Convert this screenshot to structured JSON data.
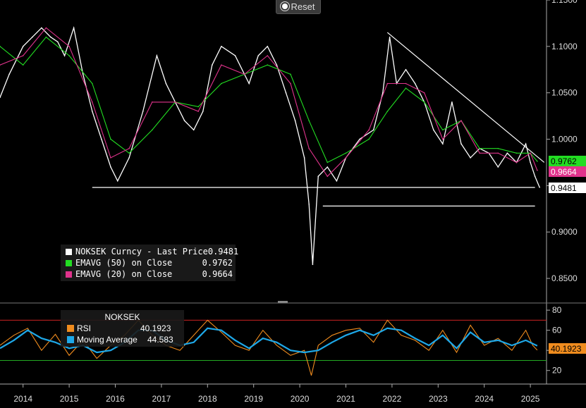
{
  "toolbar": {
    "reset_label": "Reset"
  },
  "legend": {
    "items": [
      {
        "label": "NOKSEK Curncy - Last Price",
        "value": "0.9481",
        "color": "#ffffff"
      },
      {
        "label": "EMAVG (50)  on Close",
        "value": "0.9762",
        "color": "#22dd22"
      },
      {
        "label": "EMAVG (20)  on Close",
        "value": "0.9664",
        "color": "#e0338c"
      }
    ]
  },
  "rsi_legend": {
    "title": "NOKSEK",
    "items": [
      {
        "label": "RSI",
        "value": "40.1923",
        "color": "#f08c1e"
      },
      {
        "label": "Moving Average",
        "value": "44.583",
        "color": "#1ea8e8"
      }
    ]
  },
  "price_tags": [
    {
      "value": "0.9762",
      "bg": "#22dd22",
      "fg": "#000000"
    },
    {
      "value": "0.9664",
      "bg": "#e0338c",
      "fg": "#ffffff"
    },
    {
      "value": "0.9481",
      "bg": "#ffffff",
      "fg": "#000000"
    }
  ],
  "rsi_tag": {
    "value": "40.1923",
    "bg": "#f08c1e",
    "fg": "#000000"
  },
  "chart_data": [
    {
      "type": "line",
      "series": [
        {
          "name": "NOKSEK Curncy - Last Price",
          "color": "#ffffff",
          "x": [
            2013.5,
            2013.7,
            2014.0,
            2014.2,
            2014.4,
            2014.6,
            2014.75,
            2014.9,
            2015.1,
            2015.3,
            2015.5,
            2015.7,
            2015.9,
            2016.05,
            2016.3,
            2016.6,
            2016.9,
            2017.1,
            2017.3,
            2017.5,
            2017.7,
            2017.9,
            2018.1,
            2018.3,
            2018.6,
            2018.9,
            2019.1,
            2019.3,
            2019.5,
            2019.7,
            2019.9,
            2020.1,
            2020.2,
            2020.28,
            2020.4,
            2020.6,
            2020.8,
            2021.0,
            2021.3,
            2021.6,
            2021.8,
            2021.95,
            2022.1,
            2022.3,
            2022.5,
            2022.7,
            2022.9,
            2023.1,
            2023.3,
            2023.5,
            2023.7,
            2023.9,
            2024.1,
            2024.3,
            2024.5,
            2024.7,
            2024.9,
            2025.0,
            2025.1,
            2025.2
          ],
          "y": [
            1.045,
            1.07,
            1.1,
            1.11,
            1.12,
            1.11,
            1.105,
            1.09,
            1.12,
            1.07,
            1.03,
            1.0,
            0.97,
            0.955,
            0.98,
            1.03,
            1.09,
            1.06,
            1.04,
            1.02,
            1.01,
            1.03,
            1.08,
            1.1,
            1.09,
            1.06,
            1.09,
            1.1,
            1.08,
            1.05,
            1.02,
            0.98,
            0.93,
            0.865,
            0.96,
            0.97,
            0.955,
            0.98,
            1.0,
            1.01,
            1.05,
            1.11,
            1.06,
            1.075,
            1.06,
            1.04,
            1.01,
            0.995,
            1.04,
            0.995,
            0.98,
            0.99,
            0.985,
            0.97,
            0.985,
            0.975,
            0.995,
            0.975,
            0.96,
            0.9481
          ]
        },
        {
          "name": "EMAVG (50)  on Close",
          "color": "#22dd22",
          "x": [
            2013.5,
            2014.0,
            2014.5,
            2015.0,
            2015.5,
            2015.9,
            2016.3,
            2016.8,
            2017.3,
            2017.8,
            2018.3,
            2018.8,
            2019.3,
            2019.8,
            2020.2,
            2020.6,
            2021.0,
            2021.5,
            2021.9,
            2022.3,
            2022.7,
            2023.1,
            2023.5,
            2023.9,
            2024.3,
            2024.7,
            2025.0,
            2025.15
          ],
          "y": [
            1.1,
            1.08,
            1.11,
            1.09,
            1.06,
            1.0,
            0.985,
            1.01,
            1.04,
            1.035,
            1.06,
            1.07,
            1.08,
            1.07,
            1.02,
            0.975,
            0.985,
            1.0,
            1.03,
            1.055,
            1.04,
            1.01,
            1.02,
            0.99,
            0.99,
            0.985,
            0.985,
            0.9762
          ]
        },
        {
          "name": "EMAVG (20)  on Close",
          "color": "#e0338c",
          "x": [
            2013.5,
            2014.0,
            2014.5,
            2015.0,
            2015.5,
            2015.9,
            2016.3,
            2016.8,
            2017.3,
            2017.8,
            2018.3,
            2018.8,
            2019.3,
            2019.8,
            2020.2,
            2020.6,
            2021.0,
            2021.5,
            2021.9,
            2022.3,
            2022.7,
            2023.1,
            2023.5,
            2023.9,
            2024.3,
            2024.7,
            2025.0,
            2025.15
          ],
          "y": [
            1.08,
            1.09,
            1.12,
            1.1,
            1.04,
            0.98,
            0.99,
            1.04,
            1.04,
            1.03,
            1.08,
            1.07,
            1.09,
            1.06,
            0.99,
            0.96,
            0.98,
            1.01,
            1.06,
            1.06,
            1.05,
            1.0,
            1.02,
            0.985,
            0.985,
            0.975,
            0.985,
            0.9664
          ]
        }
      ],
      "trendlines": [
        {
          "x": [
            2021.9,
            2025.3
          ],
          "y": [
            1.115,
            0.975
          ]
        },
        {
          "x": [
            2015.5,
            2025.1
          ],
          "y": [
            0.948,
            0.948
          ]
        },
        {
          "x": [
            2020.5,
            2025.1
          ],
          "y": [
            0.928,
            0.928
          ]
        }
      ],
      "ylim": [
        0.825,
        1.15
      ],
      "yticks": [
        0.85,
        0.9,
        0.95,
        1.0,
        1.05,
        1.1,
        1.15
      ],
      "ytick_labels": [
        "0.8500",
        "0.9000",
        "",
        "1.0000",
        "1.0500",
        "1.1000",
        "1.1500"
      ],
      "xlim": [
        2013.5,
        2025.35
      ],
      "grid": false,
      "legend_position": "bottom-left"
    },
    {
      "type": "line",
      "series": [
        {
          "name": "RSI",
          "color": "#f08c1e",
          "x": [
            2013.5,
            2013.8,
            2014.1,
            2014.4,
            2014.7,
            2015.0,
            2015.3,
            2015.6,
            2015.9,
            2016.2,
            2016.5,
            2016.8,
            2017.1,
            2017.4,
            2017.7,
            2018.0,
            2018.3,
            2018.6,
            2018.9,
            2019.2,
            2019.5,
            2019.8,
            2020.1,
            2020.25,
            2020.4,
            2020.7,
            2021.0,
            2021.3,
            2021.6,
            2021.9,
            2022.2,
            2022.5,
            2022.8,
            2023.1,
            2023.4,
            2023.7,
            2024.0,
            2024.3,
            2024.6,
            2024.9,
            2025.05,
            2025.15
          ],
          "y": [
            45,
            55,
            62,
            40,
            56,
            35,
            50,
            32,
            45,
            55,
            70,
            55,
            45,
            40,
            55,
            70,
            58,
            45,
            40,
            60,
            45,
            35,
            40,
            15,
            45,
            55,
            60,
            62,
            48,
            70,
            55,
            50,
            40,
            60,
            38,
            65,
            45,
            52,
            40,
            60,
            45,
            40.19
          ]
        },
        {
          "name": "Moving Average",
          "color": "#1ea8e8",
          "x": [
            2013.5,
            2013.8,
            2014.1,
            2014.4,
            2014.7,
            2015.0,
            2015.3,
            2015.6,
            2015.9,
            2016.2,
            2016.5,
            2016.8,
            2017.1,
            2017.4,
            2017.7,
            2018.0,
            2018.3,
            2018.6,
            2018.9,
            2019.2,
            2019.5,
            2019.8,
            2020.1,
            2020.4,
            2020.7,
            2021.0,
            2021.3,
            2021.6,
            2021.9,
            2022.2,
            2022.5,
            2022.8,
            2023.1,
            2023.4,
            2023.7,
            2024.0,
            2024.3,
            2024.6,
            2024.9,
            2025.15
          ],
          "y": [
            42,
            50,
            60,
            52,
            48,
            42,
            45,
            38,
            40,
            48,
            60,
            60,
            50,
            45,
            48,
            62,
            60,
            50,
            42,
            52,
            48,
            40,
            38,
            40,
            48,
            55,
            60,
            55,
            62,
            60,
            52,
            45,
            55,
            42,
            58,
            48,
            50,
            45,
            50,
            44.58
          ]
        }
      ],
      "hlines": [
        {
          "y": 70,
          "color": "#cc2222"
        },
        {
          "y": 30,
          "color": "#22aa22"
        }
      ],
      "ylim": [
        10,
        85
      ],
      "yticks": [
        20,
        40,
        60,
        80
      ],
      "ytick_labels": [
        "20",
        "40",
        "60",
        "80"
      ],
      "xlim": [
        2013.5,
        2025.35
      ]
    }
  ],
  "x_axis": {
    "labels": [
      "2014",
      "2015",
      "2016",
      "2017",
      "2018",
      "2019",
      "2020",
      "2021",
      "2022",
      "2023",
      "2024",
      "2025"
    ],
    "positions": [
      2014.0,
      2015.0,
      2016.0,
      2017.0,
      2018.0,
      2019.0,
      2020.0,
      2021.0,
      2022.0,
      2023.0,
      2024.0,
      2025.0
    ]
  }
}
